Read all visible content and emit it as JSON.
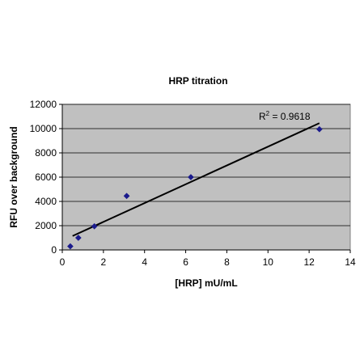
{
  "chart_data": {
    "type": "scatter",
    "title": "HRP titration",
    "xlabel": "[HRP] mU/mL",
    "ylabel": "RFU over background",
    "xlim": [
      0,
      14
    ],
    "ylim": [
      0,
      12000
    ],
    "x_ticks": [
      0,
      2,
      4,
      6,
      8,
      10,
      12,
      14
    ],
    "y_ticks": [
      0,
      2000,
      4000,
      6000,
      8000,
      10000,
      12000
    ],
    "x_tick_labels": [
      "0",
      "2",
      "4",
      "6",
      "8",
      "10",
      "12",
      "14"
    ],
    "y_tick_labels": [
      "0",
      "2000",
      "4000",
      "6000",
      "8000",
      "10000",
      "12000"
    ],
    "grid": "horizontal",
    "plot_background": "#c0c0c0",
    "series": [
      {
        "color": "#1a1a8c",
        "marker": "diamond",
        "x": [
          0.39,
          0.78,
          1.56,
          3.13,
          6.25,
          12.5
        ],
        "y": [
          300,
          1000,
          1950,
          4450,
          6000,
          9950
        ]
      }
    ],
    "trendline": {
      "type": "linear",
      "color": "#000000",
      "x": [
        0.5,
        12.5
      ],
      "y": [
        1150,
        10450
      ]
    },
    "annotation": {
      "r_label": "R",
      "r_superscript": "2",
      "r_value": " = 0.9618"
    }
  }
}
